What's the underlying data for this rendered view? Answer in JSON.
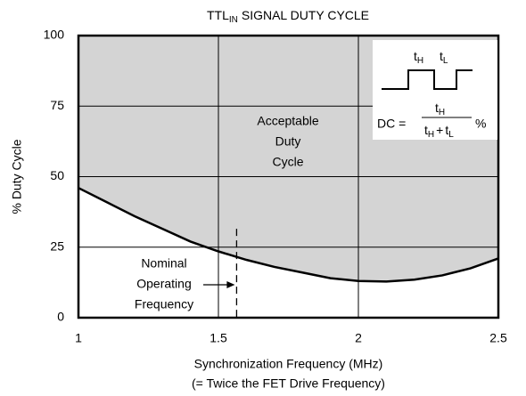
{
  "chart_data": {
    "type": "line",
    "title": {
      "main": "TTL",
      "sub": "IN",
      "rest": "SIGNAL DUTY CYCLE"
    },
    "x_label": [
      "Synchronization Frequency (MHz)",
      "(= Twice the FET Drive Frequency)"
    ],
    "y_label": "% Duty Cycle",
    "x": [
      1,
      1.1,
      1.2,
      1.3,
      1.4,
      1.5,
      1.6,
      1.7,
      1.8,
      1.9,
      2,
      2.1,
      2.2,
      2.3,
      2.4,
      2.5
    ],
    "series": [
      {
        "color": "#000000",
        "area_color": "#d4d4d4",
        "values": [
          46,
          41,
          36,
          31.5,
          27,
          23.5,
          20.5,
          18,
          16,
          14,
          13,
          12.8,
          13.5,
          15,
          17.5,
          21
        ]
      }
    ],
    "xlim": [
      1,
      2.5
    ],
    "xticks": [
      1,
      1.5,
      2,
      2.5
    ],
    "ylim": [
      0,
      100
    ],
    "yticks": [
      0,
      25,
      50,
      75,
      100
    ],
    "grid": true,
    "region_label": [
      "Acceptable",
      "Duty",
      "Cycle"
    ],
    "nominal": {
      "label": [
        "Nominal",
        "Operating",
        "Frequency"
      ],
      "x": 1.565,
      "ylim": [
        0,
        31.5
      ]
    },
    "inset": {
      "t": "t",
      "h": "H",
      "l": "L",
      "dc": "DC =",
      "plus": "+",
      "percent": "%"
    }
  }
}
